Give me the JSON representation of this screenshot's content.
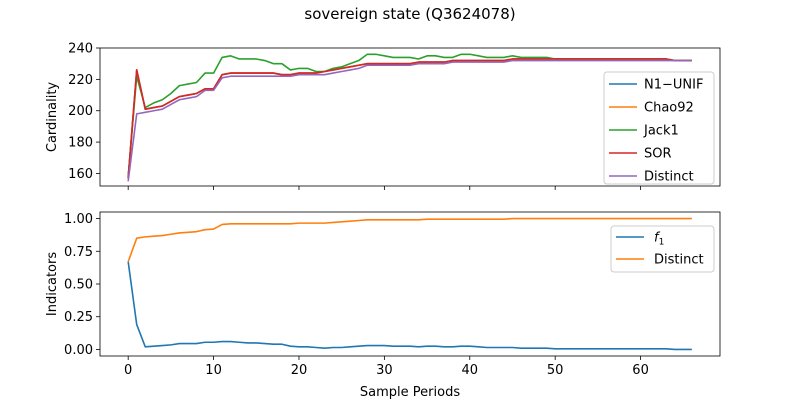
{
  "figure": {
    "title": "sovereign state (Q3624078)"
  },
  "chart_data": [
    {
      "type": "line",
      "xlabel": "",
      "ylabel": "Cardinality",
      "xlim": [
        -3.3,
        69.3
      ],
      "ylim": [
        152,
        240
      ],
      "yticks": [
        160,
        180,
        200,
        220,
        240
      ],
      "xticks": [
        0,
        10,
        20,
        30,
        40,
        50,
        60
      ],
      "show_xtick_labels": false,
      "legend_position": "right",
      "x": [
        0,
        1,
        2,
        3,
        4,
        5,
        6,
        7,
        8,
        9,
        10,
        11,
        12,
        13,
        14,
        15,
        16,
        17,
        18,
        19,
        20,
        21,
        22,
        23,
        24,
        25,
        26,
        27,
        28,
        29,
        30,
        31,
        32,
        33,
        34,
        35,
        36,
        37,
        38,
        39,
        40,
        41,
        42,
        43,
        44,
        45,
        46,
        47,
        48,
        49,
        50,
        51,
        52,
        53,
        54,
        55,
        56,
        57,
        58,
        59,
        60,
        61,
        62,
        63,
        64,
        65,
        66
      ],
      "series": [
        {
          "name": "N1−UNIF",
          "color": "#1f77b4",
          "values": [
            157,
            226,
            201,
            202,
            203,
            206,
            209,
            210,
            211,
            214,
            214,
            223,
            224,
            224,
            224,
            224,
            224,
            224,
            223,
            223,
            224,
            224,
            224,
            225,
            226,
            227,
            228,
            229,
            230,
            230,
            230,
            230,
            230,
            230,
            231,
            231,
            231,
            231,
            232,
            232,
            232,
            232,
            232,
            232,
            232,
            233,
            233,
            233,
            233,
            233,
            233,
            233,
            233,
            233,
            233,
            233,
            233,
            233,
            233,
            233,
            233,
            233,
            233,
            233,
            232,
            232,
            232
          ]
        },
        {
          "name": "Chao92",
          "color": "#ff7f0e",
          "values": [
            157,
            226,
            201,
            202,
            203,
            206,
            209,
            210,
            211,
            214,
            214,
            223,
            224,
            224,
            224,
            224,
            224,
            224,
            223,
            223,
            224,
            224,
            224,
            225,
            226,
            227,
            228,
            229,
            230,
            230,
            230,
            230,
            230,
            230,
            231,
            231,
            231,
            231,
            232,
            232,
            232,
            232,
            232,
            232,
            232,
            233,
            233,
            233,
            233,
            233,
            233,
            233,
            233,
            233,
            233,
            233,
            233,
            233,
            233,
            233,
            233,
            233,
            233,
            233,
            232,
            232,
            232
          ]
        },
        {
          "name": "Jack1",
          "color": "#2ca02c",
          "values": [
            158,
            222,
            202,
            205,
            207,
            211,
            216,
            217,
            218,
            224,
            224,
            234,
            235,
            233,
            233,
            233,
            232,
            230,
            230,
            226,
            227,
            227,
            225,
            225,
            227,
            228,
            230,
            232,
            236,
            236,
            235,
            234,
            234,
            234,
            233,
            235,
            235,
            234,
            234,
            236,
            236,
            235,
            234,
            234,
            234,
            235,
            234,
            234,
            234,
            234,
            233,
            233,
            233,
            233,
            233,
            233,
            233,
            233,
            233,
            233,
            233,
            233,
            233,
            233,
            232,
            232,
            232
          ]
        },
        {
          "name": "SOR",
          "color": "#d62728",
          "values": [
            157,
            226,
            201,
            202,
            203,
            206,
            209,
            210,
            211,
            214,
            214,
            223,
            224,
            224,
            224,
            224,
            224,
            224,
            223,
            223,
            224,
            224,
            224,
            225,
            226,
            227,
            228,
            229,
            230,
            230,
            230,
            230,
            230,
            230,
            231,
            231,
            231,
            231,
            232,
            232,
            232,
            232,
            232,
            232,
            232,
            233,
            233,
            233,
            233,
            233,
            233,
            233,
            233,
            233,
            233,
            233,
            233,
            233,
            233,
            233,
            233,
            233,
            233,
            233,
            232,
            232,
            232
          ]
        },
        {
          "name": "Distinct",
          "color": "#9467bd",
          "values": [
            155,
            198,
            199,
            200,
            201,
            204,
            207,
            208,
            209,
            213,
            213,
            221,
            222,
            222,
            222,
            222,
            222,
            222,
            222,
            222,
            223,
            223,
            223,
            223,
            224,
            225,
            226,
            227,
            229,
            229,
            229,
            229,
            229,
            229,
            230,
            230,
            230,
            230,
            231,
            231,
            231,
            231,
            231,
            231,
            231,
            232,
            232,
            232,
            232,
            232,
            232,
            232,
            232,
            232,
            232,
            232,
            232,
            232,
            232,
            232,
            232,
            232,
            232,
            232,
            232,
            232,
            232
          ]
        }
      ]
    },
    {
      "type": "line",
      "xlabel": "Sample Periods",
      "ylabel": "Indicators",
      "xlim": [
        -3.3,
        69.3
      ],
      "ylim": [
        -0.05,
        1.05
      ],
      "yticks": [
        0.0,
        0.25,
        0.5,
        0.75,
        1.0
      ],
      "ytick_labels": [
        "0.00",
        "0.25",
        "0.50",
        "0.75",
        "1.00"
      ],
      "xticks": [
        0,
        10,
        20,
        30,
        40,
        50,
        60
      ],
      "xtick_labels": [
        "0",
        "10",
        "20",
        "30",
        "40",
        "50",
        "60"
      ],
      "legend_position": "top-right",
      "x": [
        0,
        1,
        2,
        3,
        4,
        5,
        6,
        7,
        8,
        9,
        10,
        11,
        12,
        13,
        14,
        15,
        16,
        17,
        18,
        19,
        20,
        21,
        22,
        23,
        24,
        25,
        26,
        27,
        28,
        29,
        30,
        31,
        32,
        33,
        34,
        35,
        36,
        37,
        38,
        39,
        40,
        41,
        42,
        43,
        44,
        45,
        46,
        47,
        48,
        49,
        50,
        51,
        52,
        53,
        54,
        55,
        56,
        57,
        58,
        59,
        60,
        61,
        62,
        63,
        64,
        65,
        66
      ],
      "series": [
        {
          "name": "f1",
          "color": "#1f77b4",
          "values": [
            0.67,
            0.19,
            0.02,
            0.025,
            0.03,
            0.035,
            0.045,
            0.045,
            0.045,
            0.055,
            0.055,
            0.06,
            0.06,
            0.055,
            0.05,
            0.05,
            0.045,
            0.04,
            0.04,
            0.025,
            0.02,
            0.02,
            0.015,
            0.01,
            0.015,
            0.015,
            0.02,
            0.025,
            0.03,
            0.03,
            0.03,
            0.025,
            0.025,
            0.025,
            0.02,
            0.025,
            0.025,
            0.02,
            0.02,
            0.025,
            0.025,
            0.02,
            0.015,
            0.015,
            0.015,
            0.015,
            0.01,
            0.01,
            0.01,
            0.01,
            0.005,
            0.005,
            0.005,
            0.005,
            0.005,
            0.005,
            0.005,
            0.005,
            0.005,
            0.005,
            0.005,
            0.005,
            0.005,
            0.005,
            0.0,
            0.0,
            0.0
          ]
        },
        {
          "name": "Distinct",
          "color": "#ff7f0e",
          "values": [
            0.67,
            0.85,
            0.86,
            0.865,
            0.87,
            0.88,
            0.89,
            0.895,
            0.9,
            0.915,
            0.92,
            0.955,
            0.96,
            0.96,
            0.96,
            0.96,
            0.96,
            0.96,
            0.96,
            0.96,
            0.965,
            0.965,
            0.965,
            0.965,
            0.97,
            0.975,
            0.98,
            0.985,
            0.99,
            0.99,
            0.99,
            0.99,
            0.99,
            0.99,
            0.99,
            0.995,
            0.995,
            0.995,
            0.995,
            0.995,
            0.995,
            0.995,
            0.995,
            0.995,
            0.995,
            1.0,
            1.0,
            1.0,
            1.0,
            1.0,
            1.0,
            1.0,
            1.0,
            1.0,
            1.0,
            1.0,
            1.0,
            1.0,
            1.0,
            1.0,
            1.0,
            1.0,
            1.0,
            1.0,
            1.0,
            1.0,
            1.0
          ]
        }
      ]
    }
  ]
}
